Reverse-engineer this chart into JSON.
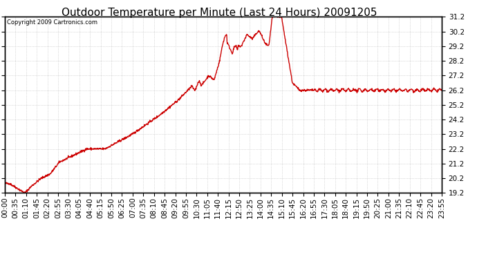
{
  "title": "Outdoor Temperature per Minute (Last 24 Hours) 20091205",
  "copyright_text": "Copyright 2009 Cartronics.com",
  "line_color": "#cc0000",
  "background_color": "#ffffff",
  "grid_color": "#bbbbbb",
  "ylim": [
    19.2,
    31.2
  ],
  "yticks": [
    19.2,
    20.2,
    21.2,
    22.2,
    23.2,
    24.2,
    25.2,
    26.2,
    27.2,
    28.2,
    29.2,
    30.2,
    31.2
  ],
  "xtick_labels": [
    "00:00",
    "00:35",
    "01:10",
    "01:45",
    "02:20",
    "02:55",
    "03:30",
    "04:05",
    "04:40",
    "05:15",
    "05:50",
    "06:25",
    "07:00",
    "07:35",
    "08:10",
    "08:45",
    "09:20",
    "09:55",
    "10:30",
    "11:05",
    "11:40",
    "12:15",
    "12:50",
    "13:25",
    "14:00",
    "14:35",
    "15:10",
    "15:45",
    "16:20",
    "16:55",
    "17:30",
    "18:05",
    "18:40",
    "19:15",
    "19:50",
    "20:25",
    "21:00",
    "21:35",
    "22:10",
    "22:45",
    "23:20",
    "23:55"
  ],
  "title_fontsize": 11,
  "copyright_fontsize": 6,
  "tick_fontsize": 7.5,
  "line_width": 1.0
}
